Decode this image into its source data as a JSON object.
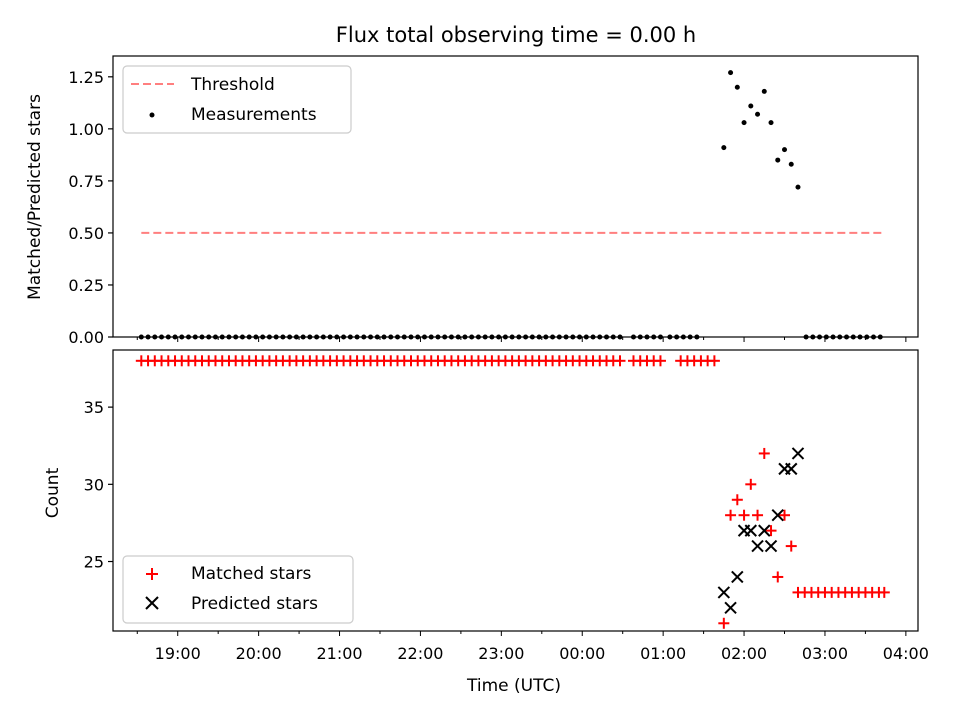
{
  "chart_data": [
    {
      "type": "scatter",
      "title": "Flux total observing time = 0.00 h",
      "xlabel": "",
      "ylabel": "Matched/Predicted stars",
      "ylim": [
        0,
        1.35
      ],
      "yticks": [
        "0.00",
        "0.25",
        "0.50",
        "0.75",
        "1.00",
        "1.25"
      ],
      "legend": {
        "placement": "top-left",
        "entries": [
          "Threshold",
          "Measurements"
        ]
      },
      "threshold": {
        "name": "Threshold",
        "value": 0.5,
        "x_start": "18:33",
        "x_end": "03:42",
        "color": "#ff7f7f"
      },
      "series": [
        {
          "name": "Measurements",
          "color": "#000000",
          "zero_x": [
            "18:33",
            "18:38",
            "18:43",
            "18:48",
            "18:53",
            "18:58",
            "19:03",
            "19:08",
            "19:13",
            "19:18",
            "19:23",
            "19:28",
            "19:33",
            "19:38",
            "19:43",
            "19:48",
            "19:53",
            "19:58",
            "20:03",
            "20:08",
            "20:13",
            "20:18",
            "20:23",
            "20:28",
            "20:33",
            "20:38",
            "20:43",
            "20:48",
            "20:53",
            "20:58",
            "21:03",
            "21:08",
            "21:13",
            "21:18",
            "21:23",
            "21:28",
            "21:33",
            "21:38",
            "21:43",
            "21:48",
            "21:53",
            "21:58",
            "22:03",
            "22:08",
            "22:13",
            "22:18",
            "22:23",
            "22:28",
            "22:33",
            "22:38",
            "22:43",
            "22:48",
            "22:53",
            "22:58",
            "23:03",
            "23:08",
            "23:13",
            "23:18",
            "23:23",
            "23:28",
            "23:33",
            "23:38",
            "23:43",
            "23:48",
            "23:53",
            "23:58",
            "00:03",
            "00:08",
            "00:13",
            "00:18",
            "00:23",
            "00:28",
            "00:38",
            "00:43",
            "00:48",
            "00:53",
            "00:58",
            "01:05",
            "01:10",
            "01:15",
            "01:20",
            "01:25",
            "02:46",
            "02:51",
            "02:56",
            "03:01",
            "03:06",
            "03:11",
            "03:16",
            "03:21",
            "03:26",
            "03:31",
            "03:36",
            "03:41"
          ],
          "points": [
            {
              "x": "01:45",
              "y": 0.91
            },
            {
              "x": "01:50",
              "y": 1.27
            },
            {
              "x": "01:55",
              "y": 1.2
            },
            {
              "x": "02:00",
              "y": 1.03
            },
            {
              "x": "02:05",
              "y": 1.11
            },
            {
              "x": "02:10",
              "y": 1.07
            },
            {
              "x": "02:15",
              "y": 1.18
            },
            {
              "x": "02:20",
              "y": 1.03
            },
            {
              "x": "02:25",
              "y": 0.85
            },
            {
              "x": "02:30",
              "y": 0.9
            },
            {
              "x": "02:35",
              "y": 0.83
            },
            {
              "x": "02:40",
              "y": 0.72
            }
          ]
        }
      ]
    },
    {
      "type": "scatter",
      "title": "",
      "xlabel": "Time (UTC)",
      "ylabel": "Count",
      "xlim": [
        "18:12",
        "04:09"
      ],
      "ylim": [
        20.5,
        38.7
      ],
      "xticks": [
        "19:00",
        "20:00",
        "21:00",
        "22:00",
        "23:00",
        "00:00",
        "01:00",
        "02:00",
        "03:00",
        "04:00"
      ],
      "yticks": [
        "25",
        "30",
        "35"
      ],
      "legend": {
        "placement": "bottom-left",
        "entries": [
          "Matched stars",
          "Predicted stars"
        ]
      },
      "series": [
        {
          "name": "Matched stars",
          "marker": "+",
          "color": "#ff0000",
          "points": [
            {
              "x": "18:33",
              "y": 38
            },
            {
              "x": "18:38",
              "y": 38
            },
            {
              "x": "18:43",
              "y": 38
            },
            {
              "x": "18:48",
              "y": 38
            },
            {
              "x": "18:53",
              "y": 38
            },
            {
              "x": "18:58",
              "y": 38
            },
            {
              "x": "19:03",
              "y": 38
            },
            {
              "x": "19:08",
              "y": 38
            },
            {
              "x": "19:13",
              "y": 38
            },
            {
              "x": "19:18",
              "y": 38
            },
            {
              "x": "19:23",
              "y": 38
            },
            {
              "x": "19:28",
              "y": 38
            },
            {
              "x": "19:33",
              "y": 38
            },
            {
              "x": "19:38",
              "y": 38
            },
            {
              "x": "19:43",
              "y": 38
            },
            {
              "x": "19:48",
              "y": 38
            },
            {
              "x": "19:53",
              "y": 38
            },
            {
              "x": "19:58",
              "y": 38
            },
            {
              "x": "20:03",
              "y": 38
            },
            {
              "x": "20:08",
              "y": 38
            },
            {
              "x": "20:13",
              "y": 38
            },
            {
              "x": "20:18",
              "y": 38
            },
            {
              "x": "20:23",
              "y": 38
            },
            {
              "x": "20:28",
              "y": 38
            },
            {
              "x": "20:33",
              "y": 38
            },
            {
              "x": "20:38",
              "y": 38
            },
            {
              "x": "20:43",
              "y": 38
            },
            {
              "x": "20:48",
              "y": 38
            },
            {
              "x": "20:53",
              "y": 38
            },
            {
              "x": "20:58",
              "y": 38
            },
            {
              "x": "21:03",
              "y": 38
            },
            {
              "x": "21:08",
              "y": 38
            },
            {
              "x": "21:13",
              "y": 38
            },
            {
              "x": "21:18",
              "y": 38
            },
            {
              "x": "21:23",
              "y": 38
            },
            {
              "x": "21:28",
              "y": 38
            },
            {
              "x": "21:33",
              "y": 38
            },
            {
              "x": "21:38",
              "y": 38
            },
            {
              "x": "21:43",
              "y": 38
            },
            {
              "x": "21:48",
              "y": 38
            },
            {
              "x": "21:53",
              "y": 38
            },
            {
              "x": "21:58",
              "y": 38
            },
            {
              "x": "22:03",
              "y": 38
            },
            {
              "x": "22:08",
              "y": 38
            },
            {
              "x": "22:13",
              "y": 38
            },
            {
              "x": "22:18",
              "y": 38
            },
            {
              "x": "22:23",
              "y": 38
            },
            {
              "x": "22:28",
              "y": 38
            },
            {
              "x": "22:33",
              "y": 38
            },
            {
              "x": "22:38",
              "y": 38
            },
            {
              "x": "22:43",
              "y": 38
            },
            {
              "x": "22:48",
              "y": 38
            },
            {
              "x": "22:53",
              "y": 38
            },
            {
              "x": "22:58",
              "y": 38
            },
            {
              "x": "23:03",
              "y": 38
            },
            {
              "x": "23:08",
              "y": 38
            },
            {
              "x": "23:13",
              "y": 38
            },
            {
              "x": "23:18",
              "y": 38
            },
            {
              "x": "23:23",
              "y": 38
            },
            {
              "x": "23:28",
              "y": 38
            },
            {
              "x": "23:33",
              "y": 38
            },
            {
              "x": "23:38",
              "y": 38
            },
            {
              "x": "23:43",
              "y": 38
            },
            {
              "x": "23:48",
              "y": 38
            },
            {
              "x": "23:53",
              "y": 38
            },
            {
              "x": "23:58",
              "y": 38
            },
            {
              "x": "00:03",
              "y": 38
            },
            {
              "x": "00:08",
              "y": 38
            },
            {
              "x": "00:13",
              "y": 38
            },
            {
              "x": "00:18",
              "y": 38
            },
            {
              "x": "00:23",
              "y": 38
            },
            {
              "x": "00:28",
              "y": 38
            },
            {
              "x": "00:38",
              "y": 38
            },
            {
              "x": "00:43",
              "y": 38
            },
            {
              "x": "00:48",
              "y": 38
            },
            {
              "x": "00:53",
              "y": 38
            },
            {
              "x": "00:58",
              "y": 38
            },
            {
              "x": "01:13",
              "y": 38
            },
            {
              "x": "01:18",
              "y": 38
            },
            {
              "x": "01:23",
              "y": 38
            },
            {
              "x": "01:28",
              "y": 38
            },
            {
              "x": "01:33",
              "y": 38
            },
            {
              "x": "01:38",
              "y": 38
            },
            {
              "x": "01:45",
              "y": 21
            },
            {
              "x": "01:50",
              "y": 28
            },
            {
              "x": "01:55",
              "y": 29
            },
            {
              "x": "02:00",
              "y": 28
            },
            {
              "x": "02:05",
              "y": 30
            },
            {
              "x": "02:10",
              "y": 28
            },
            {
              "x": "02:15",
              "y": 32
            },
            {
              "x": "02:20",
              "y": 27
            },
            {
              "x": "02:25",
              "y": 24
            },
            {
              "x": "02:30",
              "y": 28
            },
            {
              "x": "02:35",
              "y": 26
            },
            {
              "x": "02:40",
              "y": 23
            },
            {
              "x": "02:45",
              "y": 23
            },
            {
              "x": "02:50",
              "y": 23
            },
            {
              "x": "02:55",
              "y": 23
            },
            {
              "x": "03:00",
              "y": 23
            },
            {
              "x": "03:05",
              "y": 23
            },
            {
              "x": "03:10",
              "y": 23
            },
            {
              "x": "03:15",
              "y": 23
            },
            {
              "x": "03:20",
              "y": 23
            },
            {
              "x": "03:25",
              "y": 23
            },
            {
              "x": "03:30",
              "y": 23
            },
            {
              "x": "03:35",
              "y": 23
            },
            {
              "x": "03:40",
              "y": 23
            },
            {
              "x": "03:44",
              "y": 23
            }
          ]
        },
        {
          "name": "Predicted stars",
          "marker": "x",
          "color": "#000000",
          "points": [
            {
              "x": "01:45",
              "y": 23
            },
            {
              "x": "01:50",
              "y": 22
            },
            {
              "x": "01:55",
              "y": 24
            },
            {
              "x": "02:00",
              "y": 27
            },
            {
              "x": "02:05",
              "y": 27
            },
            {
              "x": "02:10",
              "y": 26
            },
            {
              "x": "02:15",
              "y": 27
            },
            {
              "x": "02:20",
              "y": 26
            },
            {
              "x": "02:25",
              "y": 28
            },
            {
              "x": "02:30",
              "y": 31
            },
            {
              "x": "02:35",
              "y": 31
            },
            {
              "x": "02:40",
              "y": 32
            }
          ]
        }
      ]
    }
  ]
}
